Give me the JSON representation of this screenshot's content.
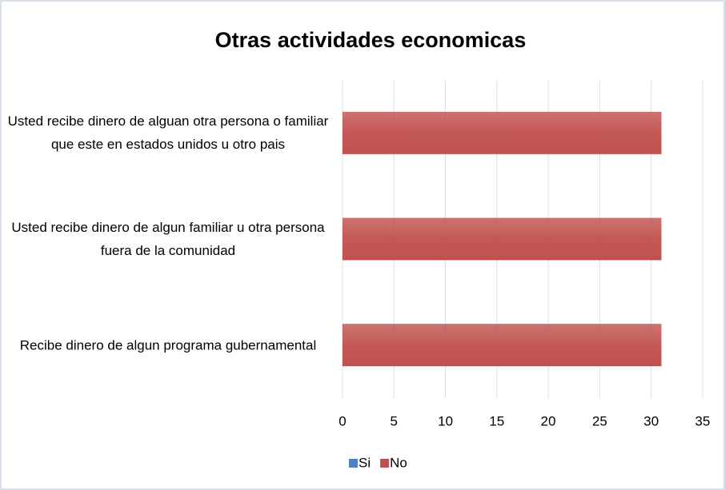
{
  "chart_data": {
    "type": "barh",
    "title": "Otras actividades economicas",
    "categories": [
      "Usted recibe dinero de alguan otra persona o familiar que este en estados unidos u otro pais",
      "Usted recibe dinero de algun familiar u otra persona fuera de la comunidad",
      "Recibe dinero de algun programa gubernamental"
    ],
    "series": [
      {
        "name": "Si",
        "color": "#4f81bd",
        "values": [
          0,
          0,
          0
        ]
      },
      {
        "name": "No",
        "color": "#c0504d",
        "values": [
          31,
          31,
          31
        ]
      }
    ],
    "xlim": [
      0,
      35
    ],
    "xticks": [
      0,
      5,
      10,
      15,
      20,
      25,
      30,
      35
    ],
    "grid": true,
    "legend": "bottom"
  }
}
